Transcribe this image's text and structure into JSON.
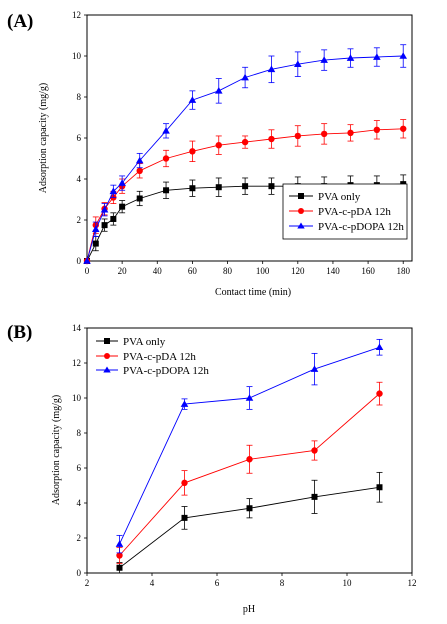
{
  "chart_data": [
    {
      "type": "line",
      "panel_label": "(A)",
      "xlabel": "Contact time (min)",
      "ylabel": "Adsorption capacity (mg/g)",
      "xlim": [
        0,
        185
      ],
      "ylim": [
        0,
        12
      ],
      "xticks": [
        "0",
        "20",
        "40",
        "60",
        "80",
        "100",
        "120",
        "140",
        "160",
        "180"
      ],
      "yticks": [
        "0",
        "2",
        "4",
        "6",
        "8",
        "10",
        "12"
      ],
      "legend_position": "bottom-right",
      "grid": false,
      "series": [
        {
          "name": "PVA only",
          "color": "#000000",
          "marker": "square",
          "x": [
            0,
            5,
            10,
            15,
            20,
            30,
            45,
            60,
            75,
            90,
            105,
            120,
            135,
            150,
            165,
            180
          ],
          "y": [
            0,
            0.85,
            1.75,
            2.05,
            2.65,
            3.05,
            3.45,
            3.55,
            3.6,
            3.65,
            3.65,
            3.65,
            3.65,
            3.7,
            3.7,
            3.75
          ],
          "err": [
            0,
            0.35,
            0.3,
            0.3,
            0.3,
            0.35,
            0.4,
            0.4,
            0.45,
            0.4,
            0.4,
            0.45,
            0.45,
            0.45,
            0.45,
            0.45
          ]
        },
        {
          "name": "PVA-c-pDA 12h",
          "color": "#ff0000",
          "marker": "circle",
          "x": [
            0,
            5,
            10,
            15,
            20,
            30,
            45,
            60,
            75,
            90,
            105,
            120,
            135,
            150,
            165,
            180
          ],
          "y": [
            0,
            1.75,
            2.55,
            3.1,
            3.65,
            4.4,
            5.0,
            5.35,
            5.65,
            5.8,
            5.95,
            6.1,
            6.2,
            6.25,
            6.4,
            6.45
          ],
          "err": [
            0,
            0.4,
            0.3,
            0.3,
            0.35,
            0.35,
            0.4,
            0.5,
            0.45,
            0.3,
            0.45,
            0.5,
            0.5,
            0.4,
            0.45,
            0.45
          ]
        },
        {
          "name": "PVA-c-pDOPA 12h",
          "color": "#0000ff",
          "marker": "triangle",
          "x": [
            0,
            5,
            10,
            15,
            20,
            30,
            45,
            60,
            75,
            90,
            105,
            120,
            135,
            150,
            165,
            180
          ],
          "y": [
            0,
            1.55,
            2.5,
            3.4,
            3.8,
            4.9,
            6.35,
            7.85,
            8.3,
            8.95,
            9.35,
            9.6,
            9.8,
            9.9,
            9.95,
            10.0
          ],
          "err": [
            0,
            0.35,
            0.3,
            0.3,
            0.35,
            0.35,
            0.35,
            0.45,
            0.6,
            0.5,
            0.65,
            0.6,
            0.5,
            0.45,
            0.45,
            0.55
          ]
        }
      ]
    },
    {
      "type": "line",
      "panel_label": "(B)",
      "xlabel": "pH",
      "ylabel": "Adsorption capacity (mg/g)",
      "xlim": [
        2,
        12
      ],
      "ylim": [
        0,
        14
      ],
      "xticks": [
        "2",
        "4",
        "6",
        "8",
        "10",
        "12"
      ],
      "yticks": [
        "0",
        "2",
        "4",
        "6",
        "8",
        "10",
        "12",
        "14"
      ],
      "legend_position": "top-left",
      "grid": false,
      "series": [
        {
          "name": "PVA only",
          "color": "#000000",
          "marker": "square",
          "x": [
            3,
            5,
            7,
            9,
            11
          ],
          "y": [
            0.3,
            3.15,
            3.7,
            4.35,
            4.9
          ],
          "err": [
            0.3,
            0.65,
            0.55,
            0.95,
            0.85
          ]
        },
        {
          "name": "PVA-c-pDA 12h",
          "color": "#ff0000",
          "marker": "circle",
          "x": [
            3,
            5,
            7,
            9,
            11
          ],
          "y": [
            1.0,
            5.15,
            6.5,
            7.0,
            10.25
          ],
          "err": [
            0.45,
            0.7,
            0.8,
            0.55,
            0.65
          ]
        },
        {
          "name": "PVA-c-pDOPA 12h",
          "color": "#0000ff",
          "marker": "triangle",
          "x": [
            3,
            5,
            7,
            9,
            11
          ],
          "y": [
            1.65,
            9.65,
            10.0,
            11.65,
            12.9
          ],
          "err": [
            0.5,
            0.3,
            0.65,
            0.9,
            0.45
          ]
        }
      ]
    }
  ]
}
